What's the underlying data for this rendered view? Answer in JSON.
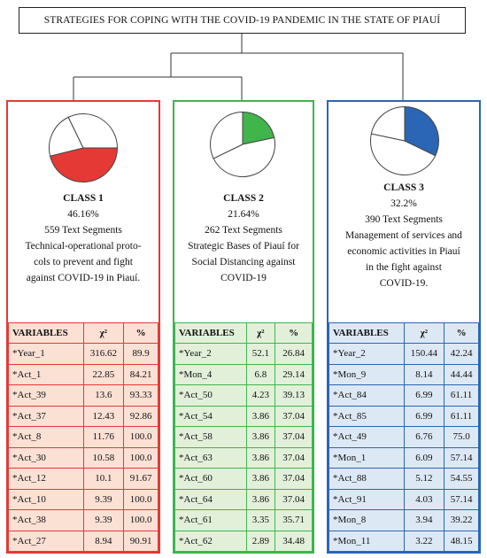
{
  "title": "STRATEGIES FOR COPING WITH THE COVID-19 PANDEMIC IN THE STATE OF PIAUÍ",
  "colors": {
    "class1": "#e53935",
    "class2": "#3fb54c",
    "class3": "#2a66b5"
  },
  "header": {
    "variables": "VARIABLES",
    "chi": "χ²",
    "pct": "%"
  },
  "classes": [
    {
      "name": "CLASS 1",
      "percent_label": "46.16%",
      "percent": 46.16,
      "segments": "559 Text Segments",
      "desc": [
        "Technical-operational proto-",
        "cols to prevent and fight",
        "against COVID-19 in Piauí."
      ],
      "rows": [
        [
          "*Year_1",
          "316.62",
          "89.9"
        ],
        [
          "*Act_1",
          "22.85",
          "84.21"
        ],
        [
          "*Act_39",
          "13.6",
          "93.33"
        ],
        [
          "*Act_37",
          "12.43",
          "92.86"
        ],
        [
          "*Act_8",
          "11.76",
          "100.0"
        ],
        [
          "*Act_30",
          "10.58",
          "100.0"
        ],
        [
          "*Act_12",
          "10.1",
          "91.67"
        ],
        [
          "*Act_10",
          "9.39",
          "100.0"
        ],
        [
          "*Act_38",
          "9.39",
          "100.0"
        ],
        [
          "*Act_27",
          "8.94",
          "90.91"
        ]
      ]
    },
    {
      "name": "CLASS 2",
      "percent_label": "21.64%",
      "percent": 21.64,
      "segments": "262 Text Segments",
      "desc": [
        "Strategic Bases of Piauí for",
        "Social Distancing against",
        "COVID-19"
      ],
      "rows": [
        [
          "*Year_2",
          "52.1",
          "26.84"
        ],
        [
          "*Mon_4",
          "6.8",
          "29.14"
        ],
        [
          "*Act_50",
          "4.23",
          "39.13"
        ],
        [
          "*Act_54",
          "3.86",
          "37.04"
        ],
        [
          "*Act_58",
          "3.86",
          "37.04"
        ],
        [
          "*Act_63",
          "3.86",
          "37.04"
        ],
        [
          "*Act_60",
          "3.86",
          "37.04"
        ],
        [
          "*Act_64",
          "3.86",
          "37.04"
        ],
        [
          "*Act_61",
          "3.35",
          "35.71"
        ],
        [
          "*Act_62",
          "2.89",
          "34.48"
        ]
      ]
    },
    {
      "name": "CLASS 3",
      "percent_label": "32.2%",
      "percent": 32.2,
      "segments": "390 Text Segments",
      "desc": [
        "Management of services and",
        "economic activities in Piauí",
        "in the fight against",
        "COVID-19."
      ],
      "rows": [
        [
          "*Year_2",
          "150.44",
          "42.24"
        ],
        [
          "*Mon_9",
          "8.14",
          "44.44"
        ],
        [
          "*Act_84",
          "6.99",
          "61.11"
        ],
        [
          "*Act_85",
          "6.99",
          "61.11"
        ],
        [
          "*Act_49",
          "6.76",
          "75.0"
        ],
        [
          "*Mon_1",
          "6.09",
          "57.14"
        ],
        [
          "*Act_88",
          "5.12",
          "54.55"
        ],
        [
          "*Act_91",
          "4.03",
          "57.14"
        ],
        [
          "*Mon_8",
          "3.94",
          "39.22"
        ],
        [
          "*Mon_11",
          "3.22",
          "48.15"
        ]
      ]
    }
  ]
}
